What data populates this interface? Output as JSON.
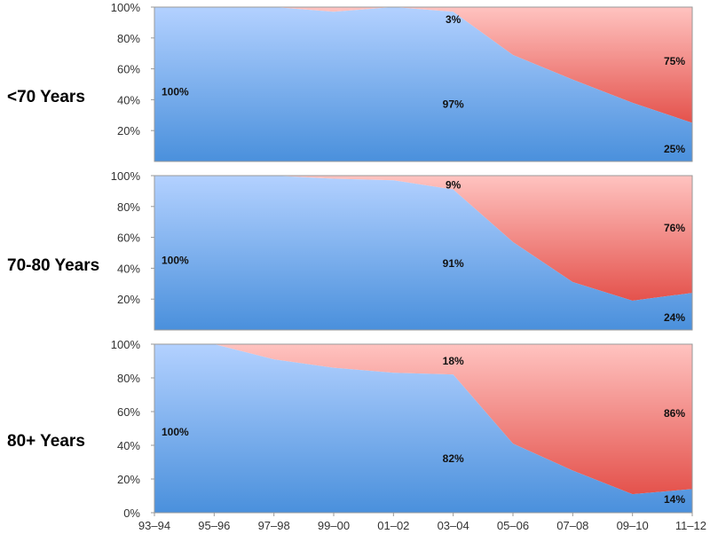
{
  "chart_data": [
    {
      "type": "area",
      "row_label": "<70 Years",
      "categories": [
        "93–94",
        "95–96",
        "97–98",
        "99–00",
        "01–02",
        "03–04",
        "05–06",
        "07–08",
        "09–10",
        "11–12"
      ],
      "series": [
        {
          "values": [
            100,
            100,
            100,
            97,
            100,
            97,
            69,
            53,
            38,
            25
          ],
          "color": "#5b9be0"
        },
        {
          "values": [
            0,
            0,
            0,
            3,
            0,
            3,
            31,
            47,
            62,
            75
          ],
          "color": "#ef7b76"
        }
      ],
      "ylim": [
        0,
        100
      ],
      "yticks": [
        "20%",
        "40%",
        "60%",
        "80%",
        "100%"
      ],
      "annotations": [
        {
          "text": "100%",
          "x": "93–94",
          "y": 45
        },
        {
          "text": "97%",
          "x": "03–04",
          "y": 37
        },
        {
          "text": "3%",
          "x": "03–04",
          "y": 92
        },
        {
          "text": "75%",
          "x": "11–12",
          "y": 65
        },
        {
          "text": "25%",
          "x": "11–12",
          "y": 8
        }
      ]
    },
    {
      "type": "area",
      "row_label": "70-80 Years",
      "categories": [
        "93–94",
        "95–96",
        "97–98",
        "99–00",
        "01–02",
        "03–04",
        "05–06",
        "07–08",
        "09–10",
        "11–12"
      ],
      "series": [
        {
          "values": [
            100,
            100,
            100,
            98,
            97,
            91,
            57,
            31,
            19,
            24
          ],
          "color": "#5b9be0"
        },
        {
          "values": [
            0,
            0,
            0,
            2,
            3,
            9,
            43,
            69,
            81,
            76
          ],
          "color": "#ef7b76"
        }
      ],
      "ylim": [
        0,
        100
      ],
      "yticks": [
        "20%",
        "40%",
        "60%",
        "80%",
        "100%"
      ],
      "annotations": [
        {
          "text": "100%",
          "x": "93–94",
          "y": 45
        },
        {
          "text": "91%",
          "x": "03–04",
          "y": 43
        },
        {
          "text": "9%",
          "x": "03–04",
          "y": 94
        },
        {
          "text": "76%",
          "x": "11–12",
          "y": 66
        },
        {
          "text": "24%",
          "x": "11–12",
          "y": 8
        }
      ]
    },
    {
      "type": "area",
      "row_label": "80+ Years",
      "categories": [
        "93–94",
        "95–96",
        "97–98",
        "99–00",
        "01–02",
        "03–04",
        "05–06",
        "07–08",
        "09–10",
        "11–12"
      ],
      "series": [
        {
          "values": [
            100,
            100,
            91,
            86,
            83,
            82,
            41,
            25,
            11,
            14
          ],
          "color": "#5b9be0"
        },
        {
          "values": [
            0,
            0,
            9,
            14,
            17,
            18,
            59,
            75,
            89,
            86
          ],
          "color": "#ef7b76"
        }
      ],
      "ylim": [
        0,
        100
      ],
      "yticks": [
        "0%",
        "20%",
        "40%",
        "60%",
        "80%",
        "100%"
      ],
      "annotations": [
        {
          "text": "100%",
          "x": "93–94",
          "y": 48
        },
        {
          "text": "82%",
          "x": "03–04",
          "y": 32
        },
        {
          "text": "18%",
          "x": "03–04",
          "y": 90
        },
        {
          "text": "86%",
          "x": "11–12",
          "y": 59
        },
        {
          "text": "14%",
          "x": "11–12",
          "y": 8
        }
      ]
    }
  ]
}
